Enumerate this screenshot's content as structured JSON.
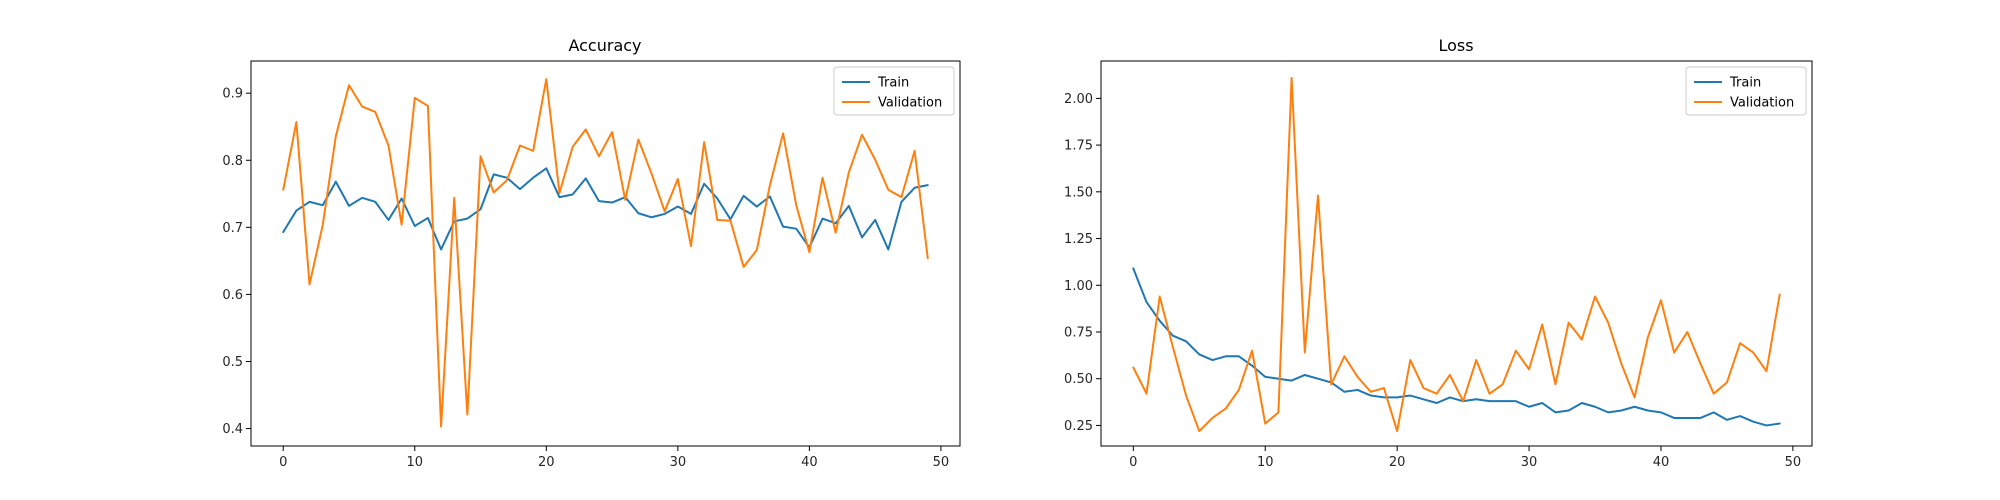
{
  "colors": {
    "train": "#1f77b4",
    "validation": "#ff7f0e"
  },
  "chart_data": [
    {
      "type": "line",
      "title": "Accuracy",
      "xlabel": "",
      "ylabel": "",
      "xlim": [
        -2.45,
        51.45
      ],
      "ylim": [
        0.374,
        0.948
      ],
      "xticks": [
        0,
        10,
        20,
        30,
        40,
        50
      ],
      "yticks": [
        0.4,
        0.5,
        0.6,
        0.7,
        0.8,
        0.9
      ],
      "ytick_labels": [
        "0.4",
        "0.5",
        "0.6",
        "0.7",
        "0.8",
        "0.9"
      ],
      "grid": false,
      "legend": "top-right",
      "x": [
        0,
        1,
        2,
        3,
        4,
        5,
        6,
        7,
        8,
        9,
        10,
        11,
        12,
        13,
        14,
        15,
        16,
        17,
        18,
        19,
        20,
        21,
        22,
        23,
        24,
        25,
        26,
        27,
        28,
        29,
        30,
        31,
        32,
        33,
        34,
        35,
        36,
        37,
        38,
        39,
        40,
        41,
        42,
        43,
        44,
        45,
        46,
        47,
        48,
        49
      ],
      "series": [
        {
          "name": "Train",
          "values": [
            0.693,
            0.725,
            0.738,
            0.733,
            0.768,
            0.732,
            0.744,
            0.738,
            0.711,
            0.743,
            0.702,
            0.714,
            0.667,
            0.709,
            0.713,
            0.727,
            0.779,
            0.774,
            0.757,
            0.774,
            0.788,
            0.745,
            0.749,
            0.773,
            0.739,
            0.737,
            0.745,
            0.721,
            0.715,
            0.72,
            0.731,
            0.72,
            0.765,
            0.743,
            0.712,
            0.747,
            0.731,
            0.746,
            0.701,
            0.698,
            0.67,
            0.713,
            0.706,
            0.732,
            0.685,
            0.711,
            0.667,
            0.738,
            0.759,
            0.763
          ]
        },
        {
          "name": "Validation",
          "values": [
            0.756,
            0.857,
            0.615,
            0.703,
            0.836,
            0.912,
            0.88,
            0.872,
            0.822,
            0.704,
            0.893,
            0.881,
            0.403,
            0.744,
            0.421,
            0.806,
            0.752,
            0.77,
            0.822,
            0.814,
            0.921,
            0.751,
            0.82,
            0.846,
            0.806,
            0.842,
            0.741,
            0.831,
            0.78,
            0.724,
            0.772,
            0.672,
            0.827,
            0.711,
            0.71,
            0.641,
            0.666,
            0.763,
            0.84,
            0.733,
            0.663,
            0.774,
            0.692,
            0.782,
            0.838,
            0.801,
            0.756,
            0.745,
            0.814,
            0.654
          ]
        }
      ]
    },
    {
      "type": "line",
      "title": "Loss",
      "xlabel": "",
      "ylabel": "",
      "xlim": [
        -2.45,
        51.45
      ],
      "ylim": [
        0.14,
        2.2
      ],
      "xticks": [
        0,
        10,
        20,
        30,
        40,
        50
      ],
      "yticks": [
        0.25,
        0.5,
        0.75,
        1.0,
        1.25,
        1.5,
        1.75,
        2.0
      ],
      "ytick_labels": [
        "0.25",
        "0.50",
        "0.75",
        "1.00",
        "1.25",
        "1.50",
        "1.75",
        "2.00"
      ],
      "grid": false,
      "legend": "top-right",
      "x": [
        0,
        1,
        2,
        3,
        4,
        5,
        6,
        7,
        8,
        9,
        10,
        11,
        12,
        13,
        14,
        15,
        16,
        17,
        18,
        19,
        20,
        21,
        22,
        23,
        24,
        25,
        26,
        27,
        28,
        29,
        30,
        31,
        32,
        33,
        34,
        35,
        36,
        37,
        38,
        39,
        40,
        41,
        42,
        43,
        44,
        45,
        46,
        47,
        48,
        49
      ],
      "series": [
        {
          "name": "Train",
          "values": [
            1.09,
            0.91,
            0.81,
            0.73,
            0.7,
            0.63,
            0.6,
            0.62,
            0.62,
            0.57,
            0.51,
            0.5,
            0.49,
            0.52,
            0.5,
            0.48,
            0.43,
            0.44,
            0.41,
            0.4,
            0.4,
            0.41,
            0.39,
            0.37,
            0.4,
            0.38,
            0.39,
            0.38,
            0.38,
            0.38,
            0.35,
            0.37,
            0.32,
            0.33,
            0.37,
            0.35,
            0.32,
            0.33,
            0.35,
            0.33,
            0.32,
            0.29,
            0.29,
            0.29,
            0.32,
            0.28,
            0.3,
            0.27,
            0.25,
            0.26
          ]
        },
        {
          "name": "Validation",
          "values": [
            0.56,
            0.42,
            0.94,
            0.67,
            0.41,
            0.22,
            0.29,
            0.34,
            0.44,
            0.65,
            0.26,
            0.32,
            2.11,
            0.64,
            1.48,
            0.47,
            0.62,
            0.51,
            0.43,
            0.45,
            0.22,
            0.6,
            0.45,
            0.42,
            0.52,
            0.38,
            0.6,
            0.42,
            0.47,
            0.65,
            0.55,
            0.79,
            0.47,
            0.8,
            0.71,
            0.94,
            0.8,
            0.58,
            0.4,
            0.72,
            0.92,
            0.64,
            0.75,
            0.58,
            0.42,
            0.48,
            0.69,
            0.64,
            0.54,
            0.95
          ]
        }
      ]
    }
  ]
}
